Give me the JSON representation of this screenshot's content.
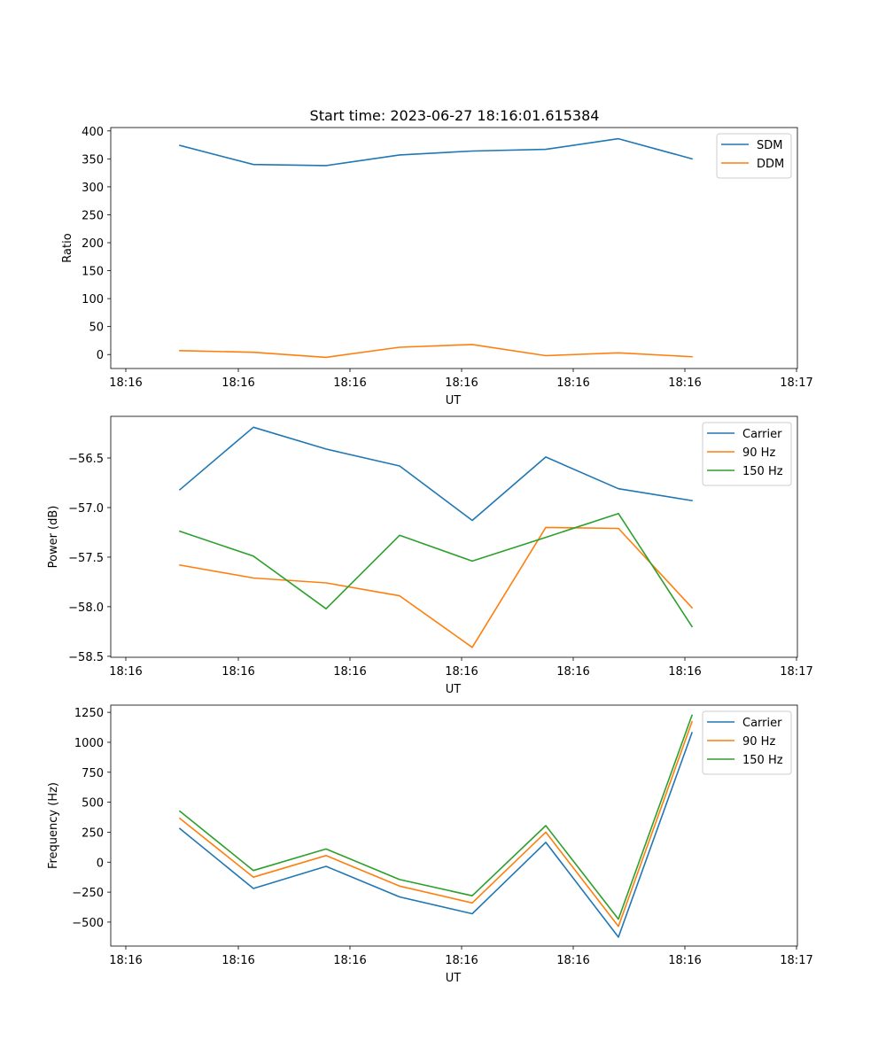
{
  "chart_data": [
    {
      "type": "line",
      "title": "Start time: 2023-06-27 18:16:01.615384",
      "xlabel": "UT",
      "ylabel": "Ratio",
      "x_tick_labels": [
        "18:16",
        "18:16",
        "18:16",
        "18:16",
        "18:16",
        "18:16",
        "18:16"
      ],
      "x_tick_last_label": "18:17",
      "y_ticks": [
        0,
        50,
        100,
        150,
        200,
        250,
        300,
        350,
        400
      ],
      "ylim": [
        -25,
        406
      ],
      "legend_position": "top-right",
      "series": [
        {
          "name": "SDM",
          "color": "#1f77b4",
          "values": [
            374,
            340,
            338,
            357,
            364,
            367,
            386,
            350
          ]
        },
        {
          "name": "DDM",
          "color": "#ff7f0e",
          "values": [
            7,
            4,
            -5,
            13,
            18,
            -2,
            3,
            -4
          ]
        }
      ]
    },
    {
      "type": "line",
      "xlabel": "UT",
      "ylabel": "Power (dB)",
      "x_tick_labels": [
        "18:16",
        "18:16",
        "18:16",
        "18:16",
        "18:16",
        "18:16",
        "18:16"
      ],
      "x_tick_last_label": "18:17",
      "y_ticks": [
        -58.5,
        -58.0,
        -57.5,
        -57.0,
        -56.5
      ],
      "y_tick_labels": [
        "−58.5",
        "−58.0",
        "−57.5",
        "−57.0",
        "−56.5"
      ],
      "ylim": [
        -58.51,
        -56.08
      ],
      "legend_position": "top-right",
      "series": [
        {
          "name": "Carrier",
          "color": "#1f77b4",
          "values": [
            -56.82,
            -56.19,
            -56.41,
            -56.58,
            -57.13,
            -56.49,
            -56.81,
            -56.93
          ]
        },
        {
          "name": "90 Hz",
          "color": "#ff7f0e",
          "values": [
            -57.58,
            -57.71,
            -57.76,
            -57.89,
            -58.41,
            -57.2,
            -57.21,
            -58.01
          ]
        },
        {
          "name": "150 Hz",
          "color": "#2ca02c",
          "values": [
            -57.24,
            -57.49,
            -58.02,
            -57.28,
            -57.54,
            -57.3,
            -57.06,
            -58.2
          ]
        }
      ]
    },
    {
      "type": "line",
      "xlabel": "UT",
      "ylabel": "Frequency (Hz)",
      "x_tick_labels": [
        "18:16",
        "18:16",
        "18:16",
        "18:16",
        "18:16",
        "18:16",
        "18:16"
      ],
      "x_tick_last_label": "18:17",
      "y_ticks": [
        -500,
        -250,
        0,
        250,
        500,
        750,
        1000,
        1250
      ],
      "y_tick_labels": [
        "−500",
        "−250",
        "0",
        "250",
        "500",
        "750",
        "1000",
        "1250"
      ],
      "ylim": [
        -700,
        1310
      ],
      "legend_position": "top-right",
      "series": [
        {
          "name": "Carrier",
          "color": "#1f77b4",
          "values": [
            280,
            -220,
            -35,
            -290,
            -430,
            165,
            -625,
            1080
          ]
        },
        {
          "name": "90 Hz",
          "color": "#ff7f0e",
          "values": [
            365,
            -125,
            55,
            -200,
            -340,
            250,
            -535,
            1170
          ]
        },
        {
          "name": "150 Hz",
          "color": "#2ca02c",
          "values": [
            425,
            -70,
            110,
            -145,
            -280,
            305,
            -475,
            1225
          ]
        }
      ]
    }
  ]
}
